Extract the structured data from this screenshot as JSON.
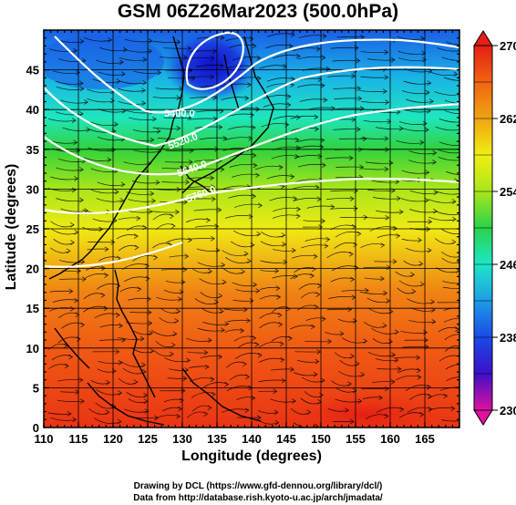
{
  "title": "GSM 06Z26Mar2023 (500.0hPa)",
  "xlabel": "Longitude (degrees)",
  "ylabel": "Latitude  (degrees)",
  "credits": [
    "Drawing by DCL (https://www.gfd-dennou.org/library/dcl/)",
    "Data from http://database.rish.kyoto-u.ac.jp/arch/jmadata/"
  ],
  "map": {
    "lon_range": [
      110,
      170
    ],
    "lat_range": [
      0,
      50
    ],
    "x_ticks": [
      110,
      115,
      120,
      125,
      130,
      135,
      140,
      145,
      150,
      155,
      160,
      165
    ],
    "y_ticks": [
      0,
      5,
      10,
      15,
      20,
      25,
      30,
      35,
      40,
      45
    ],
    "field": "temperature (K) shaded, geopotential height contours (white), streamlines",
    "colorbar": {
      "min": 230,
      "max": 270,
      "labels": [
        270,
        262,
        254,
        246,
        238,
        230
      ],
      "colors": [
        "#e0109c",
        "#3c10c8",
        "#1a4ae6",
        "#1e9ce6",
        "#1ee6c8",
        "#2ad24a",
        "#aae61a",
        "#f0ee12",
        "#f0a412",
        "#f06412",
        "#e61e14"
      ]
    },
    "contour_labels": [
      "5400.0",
      "5520.0",
      "5640.0",
      "5760.0"
    ],
    "contour_color": "#ffffff"
  }
}
